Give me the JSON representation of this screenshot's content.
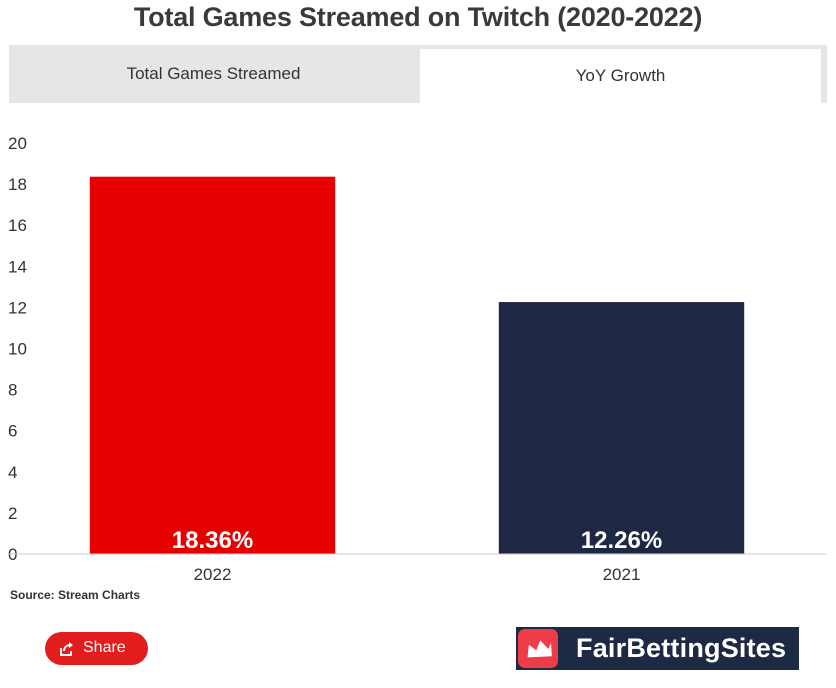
{
  "title": "Total Games Streamed on Twitch (2020-2022)",
  "tabs": [
    {
      "label": "Total Games Streamed",
      "active": false
    },
    {
      "label": "YoY Growth",
      "active": true
    }
  ],
  "source": "Source: Stream Charts",
  "share_label": "Share",
  "brand": {
    "name": "FairBettingSites",
    "bg_color": "#1c2a44",
    "logo_color": "#ee3c4a"
  },
  "chart_data": {
    "type": "bar",
    "title": "Total Games Streamed on Twitch (2020-2022)",
    "xlabel": "",
    "ylabel": "",
    "categories": [
      "2022",
      "2021"
    ],
    "values": [
      18.36,
      12.26
    ],
    "data_labels": [
      "18.36%",
      "12.26%"
    ],
    "colors": [
      "#e60000",
      "#1e2743"
    ],
    "ylim": [
      0,
      20
    ],
    "yticks": [
      0,
      2,
      4,
      6,
      8,
      10,
      12,
      14,
      16,
      18,
      20
    ],
    "grid": false,
    "legend": "none"
  }
}
